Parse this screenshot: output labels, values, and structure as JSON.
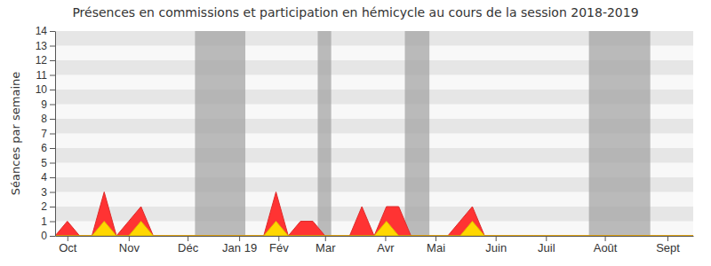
{
  "chart_data": {
    "type": "area",
    "title": "Présences en commissions et participation en hémicycle au cours de la session 2018-2019",
    "y_label": "Séances par semaine",
    "x": [
      0,
      1,
      2,
      3,
      4,
      5,
      6,
      7,
      8,
      9,
      10,
      11,
      12,
      13,
      14,
      15,
      16,
      17,
      18,
      19,
      20,
      21,
      22,
      23,
      24,
      25,
      26,
      27,
      28,
      29,
      30,
      31,
      32,
      33,
      34,
      35,
      36,
      37,
      38,
      39,
      40,
      41,
      42,
      43,
      44,
      45,
      46,
      47,
      48,
      49,
      50,
      51,
      52
    ],
    "series": [
      {
        "color": "#ff3333",
        "values": [
          0,
          1,
          0,
          0,
          3,
          0,
          1,
          2,
          0,
          0,
          0,
          0,
          0,
          0,
          0,
          0,
          0,
          0,
          3,
          0,
          1,
          1,
          0,
          0,
          0,
          2,
          0,
          2,
          2,
          0,
          0,
          0,
          0,
          1,
          2,
          0,
          0,
          0,
          0,
          0,
          0,
          0,
          0,
          0,
          0,
          0,
          0,
          0,
          0,
          0,
          0,
          0,
          0
        ]
      },
      {
        "color": "#ffd700",
        "values": [
          0,
          0,
          0,
          0,
          1,
          0,
          0,
          1,
          0,
          0,
          0,
          0,
          0,
          0,
          0,
          0,
          0,
          0,
          1,
          0,
          0,
          0,
          0,
          0,
          0,
          0,
          0,
          1,
          0,
          0,
          0,
          0,
          0,
          0,
          1,
          0,
          0,
          0,
          0,
          0,
          0,
          0,
          0,
          0,
          0,
          0,
          0,
          0,
          0,
          0,
          0,
          0,
          0
        ]
      }
    ],
    "highlight_ranges": [
      [
        11.4,
        15.5
      ],
      [
        21.4,
        22.5
      ],
      [
        28.5,
        30.5
      ],
      [
        43.5,
        48.5
      ]
    ],
    "xlim": [
      0,
      52
    ],
    "xticks": [
      {
        "value": 1,
        "label": "Oct"
      },
      {
        "value": 6,
        "label": "Nov"
      },
      {
        "value": 10.8,
        "label": "Déc"
      },
      {
        "value": 15,
        "label": "Jan 19"
      },
      {
        "value": 18.2,
        "label": "Fév"
      },
      {
        "value": 22,
        "label": "Mar"
      },
      {
        "value": 26.9,
        "label": "Avr"
      },
      {
        "value": 31,
        "label": "Mai"
      },
      {
        "value": 35.9,
        "label": "Juin"
      },
      {
        "value": 40,
        "label": "Juil"
      },
      {
        "value": 44.8,
        "label": "Août"
      },
      {
        "value": 49.9,
        "label": "Sept"
      }
    ],
    "ylim": [
      0,
      14
    ],
    "yticks": [
      0,
      1,
      2,
      3,
      4,
      5,
      6,
      7,
      8,
      9,
      10,
      11,
      12,
      13,
      14
    ],
    "grid": true
  }
}
